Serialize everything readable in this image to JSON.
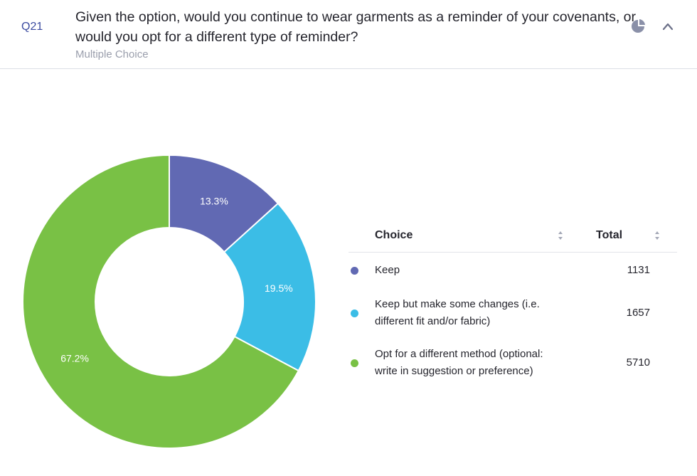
{
  "question": {
    "number": "Q21",
    "text": "Given the option, would you continue to wear garments as a reminder of your covenants, or would you opt for a different type of reminder?",
    "type": "Multiple Choice"
  },
  "icons": {
    "chart_toggle": "pie-chart-icon",
    "collapse": "chevron-up-icon"
  },
  "table": {
    "choice_header": "Choice",
    "total_header": "Total"
  },
  "chart_data": {
    "type": "pie",
    "donut": true,
    "categories": [
      "Keep",
      "Keep but make some changes (i.e. different fit and/or fabric)",
      "Opt for a different method (optional: write in suggestion or preference)"
    ],
    "values": [
      1131,
      1657,
      5710
    ],
    "percent_labels": [
      "13.3%",
      "19.5%",
      "67.2%"
    ],
    "colors": [
      "#6169b3",
      "#3bbde6",
      "#79c145"
    ]
  }
}
